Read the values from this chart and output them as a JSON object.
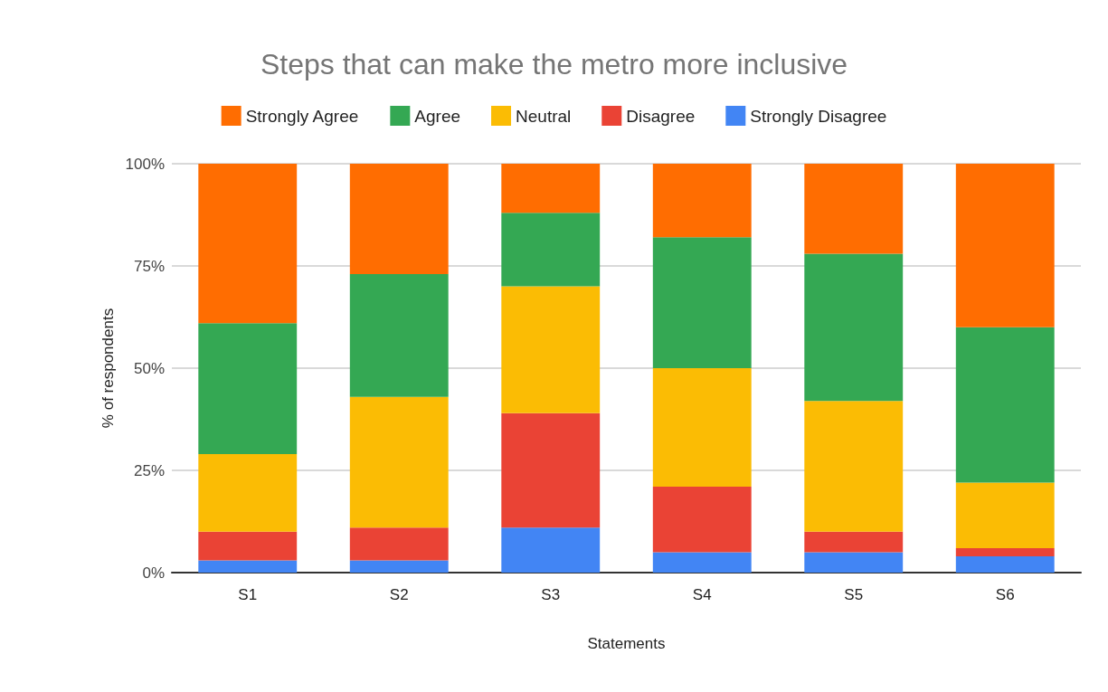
{
  "chart_data": {
    "type": "bar",
    "title": "Steps that can make the metro more inclusive",
    "xlabel": "Statements",
    "ylabel": "% of respondents",
    "categories": [
      "S1",
      "S2",
      "S3",
      "S4",
      "S5",
      "S6"
    ],
    "stacked": true,
    "series": [
      {
        "name": "Strongly Disagree",
        "color": "#4285f4",
        "values": [
          3,
          3,
          11,
          5,
          5,
          4
        ]
      },
      {
        "name": "Disagree",
        "color": "#ea4335",
        "values": [
          7,
          8,
          28,
          16,
          5,
          2
        ]
      },
      {
        "name": "Neutral",
        "color": "#fbbc04",
        "values": [
          19,
          32,
          31,
          29,
          32,
          16
        ]
      },
      {
        "name": "Agree",
        "color": "#34a853",
        "values": [
          32,
          30,
          18,
          32,
          36,
          38
        ]
      },
      {
        "name": "Strongly Agree",
        "color": "#ff6d01",
        "values": [
          39,
          27,
          12,
          18,
          22,
          40
        ]
      }
    ],
    "ylim": [
      0,
      100
    ],
    "yticks": [
      {
        "value": 0,
        "label": "0%"
      },
      {
        "value": 25,
        "label": "25%"
      },
      {
        "value": 50,
        "label": "50%"
      },
      {
        "value": 75,
        "label": "75%"
      },
      {
        "value": 100,
        "label": "100%"
      }
    ],
    "grid": "y",
    "legend": "top"
  }
}
